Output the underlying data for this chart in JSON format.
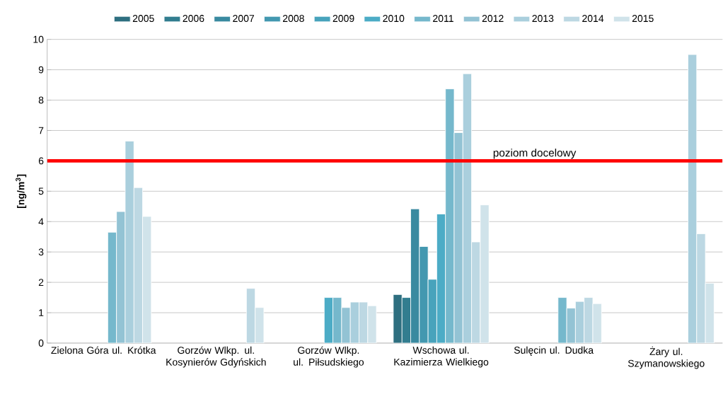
{
  "chart_data": {
    "type": "bar",
    "ylabel": "[ng/m$^{3}$]",
    "categories": [
      "Zielona Góra ul. Krótka",
      "Gorzów Wlkp. ul. Kosynierów Gdyńskich",
      "Gorzów Wlkp. ul. Piłsudskiego",
      "Wschowa ul. Kazimierza Wielkiego",
      "Sulęcin ul. Dudka",
      "Żary ul. Szymanowskiego"
    ],
    "series": [
      {
        "name": "2005",
        "color": "#2e6f80",
        "values": [
          null,
          null,
          null,
          1.6,
          null,
          null
        ]
      },
      {
        "name": "2006",
        "color": "#327d8f",
        "values": [
          null,
          null,
          null,
          1.5,
          null,
          null
        ]
      },
      {
        "name": "2007",
        "color": "#3a8aa0",
        "values": [
          null,
          null,
          null,
          4.42,
          null,
          null
        ]
      },
      {
        "name": "2008",
        "color": "#4398b0",
        "values": [
          null,
          null,
          null,
          3.18,
          null,
          null
        ]
      },
      {
        "name": "2009",
        "color": "#48a3bc",
        "values": [
          null,
          null,
          null,
          2.1,
          null,
          null
        ]
      },
      {
        "name": "2010",
        "color": "#4cacc6",
        "values": [
          null,
          null,
          1.5,
          4.25,
          null,
          null
        ]
      },
      {
        "name": "2011",
        "color": "#75b8cc",
        "values": [
          3.65,
          null,
          1.5,
          8.37,
          1.5,
          null
        ]
      },
      {
        "name": "2012",
        "color": "#93c3d4",
        "values": [
          4.33,
          null,
          1.17,
          6.93,
          1.15,
          null
        ]
      },
      {
        "name": "2013",
        "color": "#aacfdd",
        "values": [
          6.65,
          null,
          1.35,
          8.87,
          1.37,
          9.5
        ]
      },
      {
        "name": "2014",
        "color": "#bdd8e3",
        "values": [
          5.12,
          1.8,
          1.35,
          3.33,
          1.5,
          3.6
        ]
      },
      {
        "name": "2015",
        "color": "#d0e3ea",
        "values": [
          4.17,
          1.17,
          1.23,
          4.55,
          1.3,
          1.97
        ]
      }
    ],
    "ylim": [
      0,
      10
    ],
    "yticks": [
      0,
      1,
      2,
      3,
      4,
      5,
      6,
      7,
      8,
      9,
      10
    ],
    "grid": "y",
    "legend": "top",
    "ref_lines": [
      {
        "axis": "y",
        "value": 6,
        "label": "poziom docelowy",
        "color": "#ff0000"
      }
    ]
  }
}
